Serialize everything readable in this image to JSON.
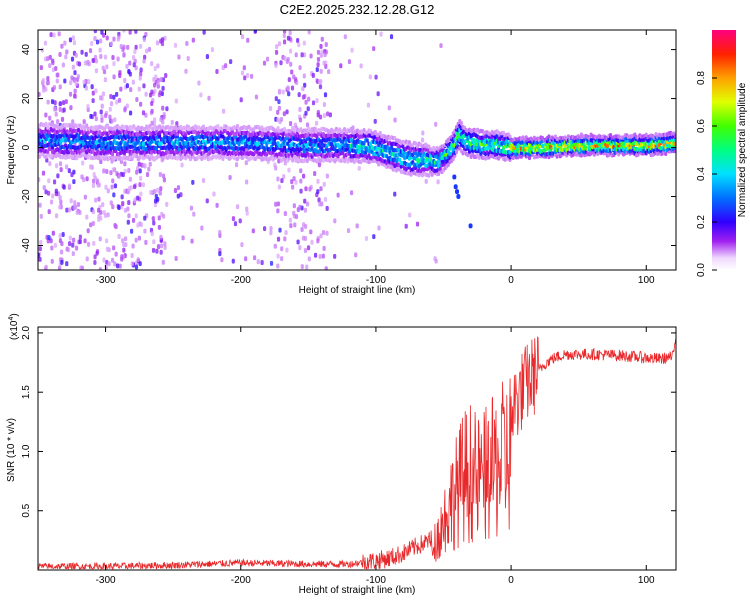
{
  "title": "C2E2.2025.232.12.28.G12",
  "chart_data": [
    {
      "type": "heatmap",
      "xlabel": "Height of straight line (km)",
      "ylabel": "Frequency (Hz)",
      "xlim": [
        -350,
        122
      ],
      "ylim": [
        -50,
        48
      ],
      "x_ticks": [
        -300,
        -200,
        -100,
        0,
        100
      ],
      "y_ticks": [
        -40,
        -20,
        0,
        20,
        40
      ],
      "x_tick_labels": [
        "-300",
        "-200",
        "-100",
        "0",
        "100"
      ],
      "y_tick_labels": [
        "-40",
        "-20",
        "0",
        "20",
        "40"
      ],
      "colorbar": {
        "label": "Normalized spectral amplitude",
        "range": [
          0,
          1
        ],
        "ticks": [
          0.0,
          0.2,
          0.4,
          0.6,
          0.8
        ],
        "tick_labels": [
          "0.0",
          "0.2",
          "0.4",
          "0.6",
          "0.8"
        ]
      },
      "ridge": {
        "x": [
          -350,
          -300,
          -250,
          -200,
          -150,
          -120,
          -100,
          -90,
          -80,
          -70,
          -60,
          -55,
          -50,
          -45,
          -42,
          -40,
          -38,
          -35,
          -30,
          -20,
          -10,
          0,
          20,
          50,
          80,
          100,
          122
        ],
        "y": [
          3,
          2,
          2,
          2,
          1,
          1,
          0,
          -2,
          -4,
          -5,
          -5,
          -6,
          -4,
          -1,
          1,
          4,
          5,
          3,
          2,
          1,
          1,
          0,
          0,
          1,
          1,
          1,
          2
        ]
      }
    },
    {
      "type": "line",
      "xlabel": "Height of straight line (km)",
      "ylabel": "SNR (10 * v/v)",
      "y_multiplier": "(x10",
      "y_multiplier_exp": "4",
      "y_multiplier_close": ")",
      "xlim": [
        -350,
        122
      ],
      "ylim": [
        0,
        2.05
      ],
      "x_ticks": [
        -300,
        -200,
        -100,
        0,
        100
      ],
      "y_ticks": [
        0.5,
        1.0,
        1.5,
        2.0
      ],
      "x_tick_labels": [
        "-300",
        "-200",
        "-100",
        "0",
        "100"
      ],
      "y_tick_labels": [
        "0.5",
        "1.0",
        "1.5",
        "2.0"
      ],
      "series": [
        {
          "color": "#e8282a",
          "x": [
            -350,
            -300,
            -250,
            -200,
            -150,
            -120,
            -100,
            -90,
            -80,
            -70,
            -60,
            -55,
            -50,
            -45,
            -40,
            -35,
            -30,
            -25,
            -20,
            -15,
            -10,
            -5,
            0,
            5,
            10,
            15,
            20,
            25,
            30,
            40,
            60,
            80,
            100,
            110,
            120,
            122
          ],
          "y": [
            0.03,
            0.03,
            0.04,
            0.06,
            0.05,
            0.05,
            0.08,
            0.1,
            0.14,
            0.2,
            0.25,
            0.35,
            0.55,
            0.75,
            0.9,
            1.05,
            1.1,
            1.0,
            1.05,
            1.1,
            1.18,
            1.25,
            1.35,
            1.45,
            1.55,
            1.62,
            1.68,
            1.74,
            1.78,
            1.82,
            1.82,
            1.81,
            1.79,
            1.78,
            1.8,
            2.0
          ]
        }
      ]
    }
  ]
}
